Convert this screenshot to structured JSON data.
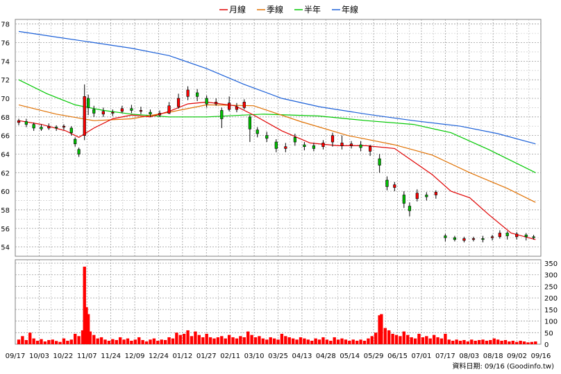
{
  "chart_data": {
    "type": "candlestick-with-volume",
    "legend": [
      {
        "name": "月線",
        "color": "#e00000"
      },
      {
        "name": "季線",
        "color": "#e07000"
      },
      {
        "name": "半年",
        "color": "#00c800"
      },
      {
        "name": "年線",
        "color": "#1a5fd8"
      }
    ],
    "price_axis": {
      "min": 53,
      "max": 78.5,
      "ticks": [
        54,
        56,
        58,
        60,
        62,
        64,
        66,
        68,
        70,
        72,
        74,
        76,
        78
      ]
    },
    "volume_axis": {
      "min": 0,
      "max": 365,
      "ticks": [
        0,
        50,
        100,
        150,
        200,
        250,
        300,
        350
      ]
    },
    "x_labels": [
      "09/17",
      "10/03",
      "10/22",
      "11/07",
      "11/24",
      "12/09",
      "12/24",
      "01/12",
      "01/27",
      "02/11",
      "03/10",
      "03/25",
      "04/13",
      "04/28",
      "05/14",
      "05/29",
      "06/15",
      "07/01",
      "07/17",
      "08/03",
      "08/18",
      "09/02",
      "09/16"
    ],
    "month_line": [
      [
        0,
        67.6
      ],
      [
        12,
        67.2
      ],
      [
        25,
        66.5
      ],
      [
        32,
        65.8
      ],
      [
        40,
        66.8
      ],
      [
        50,
        67.8
      ],
      [
        60,
        68.2
      ],
      [
        70,
        68.0
      ],
      [
        80,
        68.6
      ],
      [
        90,
        69.4
      ],
      [
        100,
        69.6
      ],
      [
        115,
        69.2
      ],
      [
        125,
        68.2
      ],
      [
        140,
        66.5
      ],
      [
        155,
        65.2
      ],
      [
        170,
        64.9
      ],
      [
        185,
        64.9
      ],
      [
        200,
        64.6
      ],
      [
        210,
        63.2
      ],
      [
        220,
        61.8
      ],
      [
        230,
        60.0
      ],
      [
        240,
        59.3
      ],
      [
        250,
        57.5
      ],
      [
        262,
        55.5
      ],
      [
        275,
        54.8
      ]
    ],
    "quarter_line": [
      [
        0,
        69.3
      ],
      [
        20,
        68.3
      ],
      [
        40,
        67.6
      ],
      [
        60,
        67.8
      ],
      [
        80,
        68.5
      ],
      [
        100,
        69.3
      ],
      [
        125,
        69.2
      ],
      [
        150,
        67.5
      ],
      [
        175,
        66.0
      ],
      [
        200,
        65.0
      ],
      [
        220,
        63.9
      ],
      [
        240,
        62.0
      ],
      [
        260,
        60.3
      ],
      [
        275,
        58.8
      ]
    ],
    "half_year_line": [
      [
        0,
        72.0
      ],
      [
        15,
        70.5
      ],
      [
        30,
        69.3
      ],
      [
        45,
        68.7
      ],
      [
        60,
        68.3
      ],
      [
        80,
        68.0
      ],
      [
        100,
        68.0
      ],
      [
        130,
        68.3
      ],
      [
        160,
        68.1
      ],
      [
        185,
        67.6
      ],
      [
        210,
        67.2
      ],
      [
        230,
        66.3
      ],
      [
        250,
        64.5
      ],
      [
        275,
        62.0
      ]
    ],
    "year_line": [
      [
        0,
        77.2
      ],
      [
        20,
        76.6
      ],
      [
        40,
        76.0
      ],
      [
        60,
        75.4
      ],
      [
        80,
        74.6
      ],
      [
        100,
        73.2
      ],
      [
        120,
        71.5
      ],
      [
        140,
        70.0
      ],
      [
        160,
        69.1
      ],
      [
        185,
        68.3
      ],
      [
        210,
        67.6
      ],
      [
        235,
        67.0
      ],
      [
        255,
        66.2
      ],
      [
        275,
        65.1
      ]
    ],
    "candles": [
      [
        0,
        67.4,
        67.6,
        67.8,
        67.1
      ],
      [
        4,
        67.5,
        67.2,
        67.8,
        66.9
      ],
      [
        8,
        67.2,
        66.8,
        67.4,
        66.5
      ],
      [
        12,
        66.9,
        66.7,
        67.2,
        66.5
      ],
      [
        16,
        66.8,
        67.0,
        67.3,
        66.6
      ],
      [
        20,
        66.9,
        66.8,
        67.1,
        66.5
      ],
      [
        24,
        66.9,
        67.0,
        67.2,
        66.6
      ],
      [
        28,
        66.8,
        66.3,
        67.0,
        66.0
      ],
      [
        30,
        65.6,
        65.1,
        65.8,
        64.8
      ],
      [
        32,
        64.5,
        64.0,
        64.7,
        63.7
      ],
      [
        35,
        66.0,
        70.2,
        71.5,
        65.5
      ],
      [
        37,
        70.0,
        69.0,
        70.4,
        68.2
      ],
      [
        40,
        68.8,
        68.4,
        69.2,
        68.0
      ],
      [
        45,
        68.3,
        68.6,
        69.0,
        68.0
      ],
      [
        50,
        68.4,
        68.5,
        68.8,
        68.1
      ],
      [
        55,
        68.6,
        68.9,
        69.2,
        68.4
      ],
      [
        60,
        68.9,
        68.7,
        69.3,
        68.4
      ],
      [
        65,
        68.6,
        68.7,
        69.1,
        68.3
      ],
      [
        70,
        68.5,
        68.3,
        68.8,
        68.0
      ],
      [
        75,
        68.2,
        68.4,
        68.7,
        68.0
      ],
      [
        80,
        68.4,
        69.2,
        69.6,
        68.3
      ],
      [
        85,
        69.1,
        70.0,
        70.5,
        68.9
      ],
      [
        90,
        70.2,
        70.9,
        71.3,
        69.8
      ],
      [
        95,
        70.6,
        70.2,
        71.0,
        69.7
      ],
      [
        100,
        70.0,
        69.4,
        70.3,
        69.0
      ],
      [
        105,
        69.4,
        69.6,
        70.0,
        69.2
      ],
      [
        108,
        68.7,
        67.8,
        69.0,
        66.8
      ],
      [
        112,
        68.8,
        69.5,
        70.2,
        68.6
      ],
      [
        116,
        68.8,
        69.1,
        69.5,
        68.5
      ],
      [
        120,
        69.0,
        69.6,
        69.9,
        68.8
      ],
      [
        123,
        68.0,
        66.7,
        68.2,
        65.3
      ],
      [
        127,
        66.6,
        66.2,
        66.9,
        65.8
      ],
      [
        132,
        66.0,
        65.7,
        66.4,
        65.3
      ],
      [
        137,
        65.3,
        64.6,
        65.6,
        64.2
      ],
      [
        142,
        64.6,
        64.8,
        65.2,
        64.2
      ],
      [
        147,
        65.8,
        65.3,
        66.2,
        64.9
      ],
      [
        152,
        65.0,
        64.8,
        65.3,
        64.4
      ],
      [
        157,
        64.9,
        64.6,
        65.2,
        64.3
      ],
      [
        162,
        64.8,
        65.2,
        65.5,
        64.5
      ],
      [
        167,
        65.3,
        66.0,
        66.3,
        64.8
      ],
      [
        172,
        64.9,
        65.2,
        66.0,
        64.5
      ],
      [
        177,
        64.9,
        65.1,
        65.4,
        64.6
      ],
      [
        182,
        65.0,
        64.7,
        65.4,
        64.3
      ],
      [
        187,
        64.3,
        64.8,
        65.0,
        63.8
      ],
      [
        192,
        63.5,
        62.8,
        64.0,
        62.0
      ],
      [
        196,
        61.2,
        60.5,
        61.6,
        60.1
      ],
      [
        200,
        60.4,
        60.7,
        61.0,
        60.0
      ],
      [
        205,
        59.6,
        58.7,
        60.0,
        58.2
      ],
      [
        208,
        58.4,
        57.9,
        58.8,
        57.3
      ],
      [
        212,
        59.2,
        59.8,
        60.2,
        58.9
      ],
      [
        217,
        59.6,
        59.4,
        59.9,
        59.0
      ],
      [
        222,
        59.6,
        59.9,
        60.1,
        59.2
      ],
      [
        227,
        55.2,
        55.0,
        55.4,
        54.6
      ],
      [
        232,
        55.0,
        54.8,
        55.2,
        54.6
      ],
      [
        237,
        54.7,
        54.9,
        55.1,
        54.5
      ],
      [
        242,
        54.8,
        54.9,
        55.1,
        54.6
      ],
      [
        247,
        54.9,
        54.8,
        55.2,
        54.5
      ],
      [
        252,
        55.0,
        55.1,
        55.3,
        54.7
      ],
      [
        256,
        55.1,
        55.5,
        55.8,
        54.9
      ],
      [
        260,
        55.5,
        55.2,
        55.7,
        54.8
      ],
      [
        265,
        55.1,
        55.4,
        55.6,
        54.8
      ],
      [
        270,
        55.3,
        55.1,
        55.5,
        54.7
      ],
      [
        274,
        55.1,
        55.0,
        55.3,
        54.8
      ]
    ],
    "volume": [
      [
        0,
        20
      ],
      [
        2,
        35
      ],
      [
        4,
        18
      ],
      [
        6,
        50
      ],
      [
        8,
        25
      ],
      [
        10,
        15
      ],
      [
        12,
        22
      ],
      [
        14,
        12
      ],
      [
        16,
        18
      ],
      [
        18,
        20
      ],
      [
        20,
        14
      ],
      [
        22,
        10
      ],
      [
        24,
        25
      ],
      [
        26,
        15
      ],
      [
        28,
        20
      ],
      [
        30,
        45
      ],
      [
        32,
        35
      ],
      [
        34,
        60
      ],
      [
        35,
        335
      ],
      [
        36,
        160
      ],
      [
        37,
        130
      ],
      [
        38,
        55
      ],
      [
        40,
        40
      ],
      [
        42,
        25
      ],
      [
        44,
        30
      ],
      [
        46,
        20
      ],
      [
        48,
        15
      ],
      [
        50,
        22
      ],
      [
        52,
        18
      ],
      [
        54,
        30
      ],
      [
        56,
        20
      ],
      [
        58,
        25
      ],
      [
        60,
        15
      ],
      [
        62,
        20
      ],
      [
        64,
        30
      ],
      [
        66,
        18
      ],
      [
        68,
        12
      ],
      [
        70,
        20
      ],
      [
        72,
        25
      ],
      [
        74,
        15
      ],
      [
        76,
        20
      ],
      [
        78,
        18
      ],
      [
        80,
        30
      ],
      [
        82,
        25
      ],
      [
        84,
        50
      ],
      [
        86,
        40
      ],
      [
        88,
        45
      ],
      [
        90,
        60
      ],
      [
        92,
        35
      ],
      [
        94,
        55
      ],
      [
        96,
        40
      ],
      [
        98,
        30
      ],
      [
        100,
        45
      ],
      [
        102,
        30
      ],
      [
        104,
        25
      ],
      [
        106,
        30
      ],
      [
        108,
        35
      ],
      [
        110,
        25
      ],
      [
        112,
        40
      ],
      [
        114,
        30
      ],
      [
        116,
        25
      ],
      [
        118,
        35
      ],
      [
        120,
        30
      ],
      [
        122,
        55
      ],
      [
        124,
        40
      ],
      [
        126,
        30
      ],
      [
        128,
        35
      ],
      [
        130,
        25
      ],
      [
        132,
        20
      ],
      [
        134,
        30
      ],
      [
        136,
        25
      ],
      [
        138,
        20
      ],
      [
        140,
        45
      ],
      [
        142,
        35
      ],
      [
        144,
        30
      ],
      [
        146,
        25
      ],
      [
        148,
        20
      ],
      [
        150,
        30
      ],
      [
        152,
        25
      ],
      [
        154,
        20
      ],
      [
        156,
        15
      ],
      [
        158,
        25
      ],
      [
        160,
        20
      ],
      [
        162,
        30
      ],
      [
        164,
        20
      ],
      [
        166,
        15
      ],
      [
        168,
        30
      ],
      [
        170,
        20
      ],
      [
        172,
        25
      ],
      [
        174,
        20
      ],
      [
        176,
        15
      ],
      [
        178,
        20
      ],
      [
        180,
        15
      ],
      [
        182,
        20
      ],
      [
        184,
        15
      ],
      [
        186,
        25
      ],
      [
        188,
        35
      ],
      [
        190,
        50
      ],
      [
        192,
        125
      ],
      [
        193,
        130
      ],
      [
        195,
        70
      ],
      [
        197,
        60
      ],
      [
        199,
        45
      ],
      [
        201,
        40
      ],
      [
        203,
        35
      ],
      [
        205,
        55
      ],
      [
        207,
        40
      ],
      [
        209,
        30
      ],
      [
        211,
        25
      ],
      [
        213,
        45
      ],
      [
        215,
        30
      ],
      [
        217,
        35
      ],
      [
        219,
        25
      ],
      [
        221,
        40
      ],
      [
        223,
        30
      ],
      [
        225,
        25
      ],
      [
        227,
        45
      ],
      [
        229,
        20
      ],
      [
        231,
        15
      ],
      [
        233,
        20
      ],
      [
        235,
        15
      ],
      [
        237,
        18
      ],
      [
        239,
        12
      ],
      [
        241,
        20
      ],
      [
        243,
        15
      ],
      [
        245,
        18
      ],
      [
        247,
        20
      ],
      [
        249,
        15
      ],
      [
        251,
        18
      ],
      [
        253,
        25
      ],
      [
        255,
        20
      ],
      [
        257,
        15
      ],
      [
        259,
        18
      ],
      [
        261,
        12
      ],
      [
        263,
        15
      ],
      [
        265,
        10
      ],
      [
        267,
        15
      ],
      [
        269,
        12
      ],
      [
        271,
        8
      ],
      [
        273,
        10
      ],
      [
        275,
        12
      ]
    ]
  },
  "footer": {
    "text": "資料日期: 09/16  (Goodinfo.tw)"
  }
}
